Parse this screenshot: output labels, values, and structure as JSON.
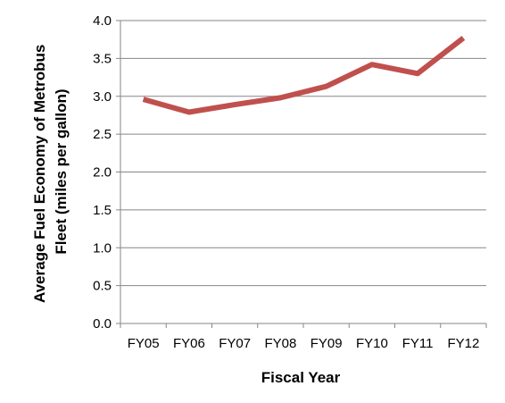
{
  "chart_data": {
    "type": "line",
    "categories": [
      "FY05",
      "FY06",
      "FY07",
      "FY08",
      "FY09",
      "FY10",
      "FY11",
      "FY12"
    ],
    "series": [
      {
        "values": [
          2.96,
          2.79,
          2.89,
          2.98,
          3.13,
          3.42,
          3.3,
          3.77
        ],
        "color": "#C0504D"
      }
    ],
    "title": "",
    "xlabel": "Fiscal Year",
    "ylabel_line1": "Average Fuel Economy of Metrobus",
    "ylabel_line2": "Fleet (miles per gallon)",
    "ylim": [
      0,
      4.0
    ],
    "yticks": [
      "0.0",
      "0.5",
      "1.0",
      "1.5",
      "2.0",
      "2.5",
      "3.0",
      "3.5",
      "4.0"
    ],
    "grid": "horizontal",
    "legend": "none"
  }
}
